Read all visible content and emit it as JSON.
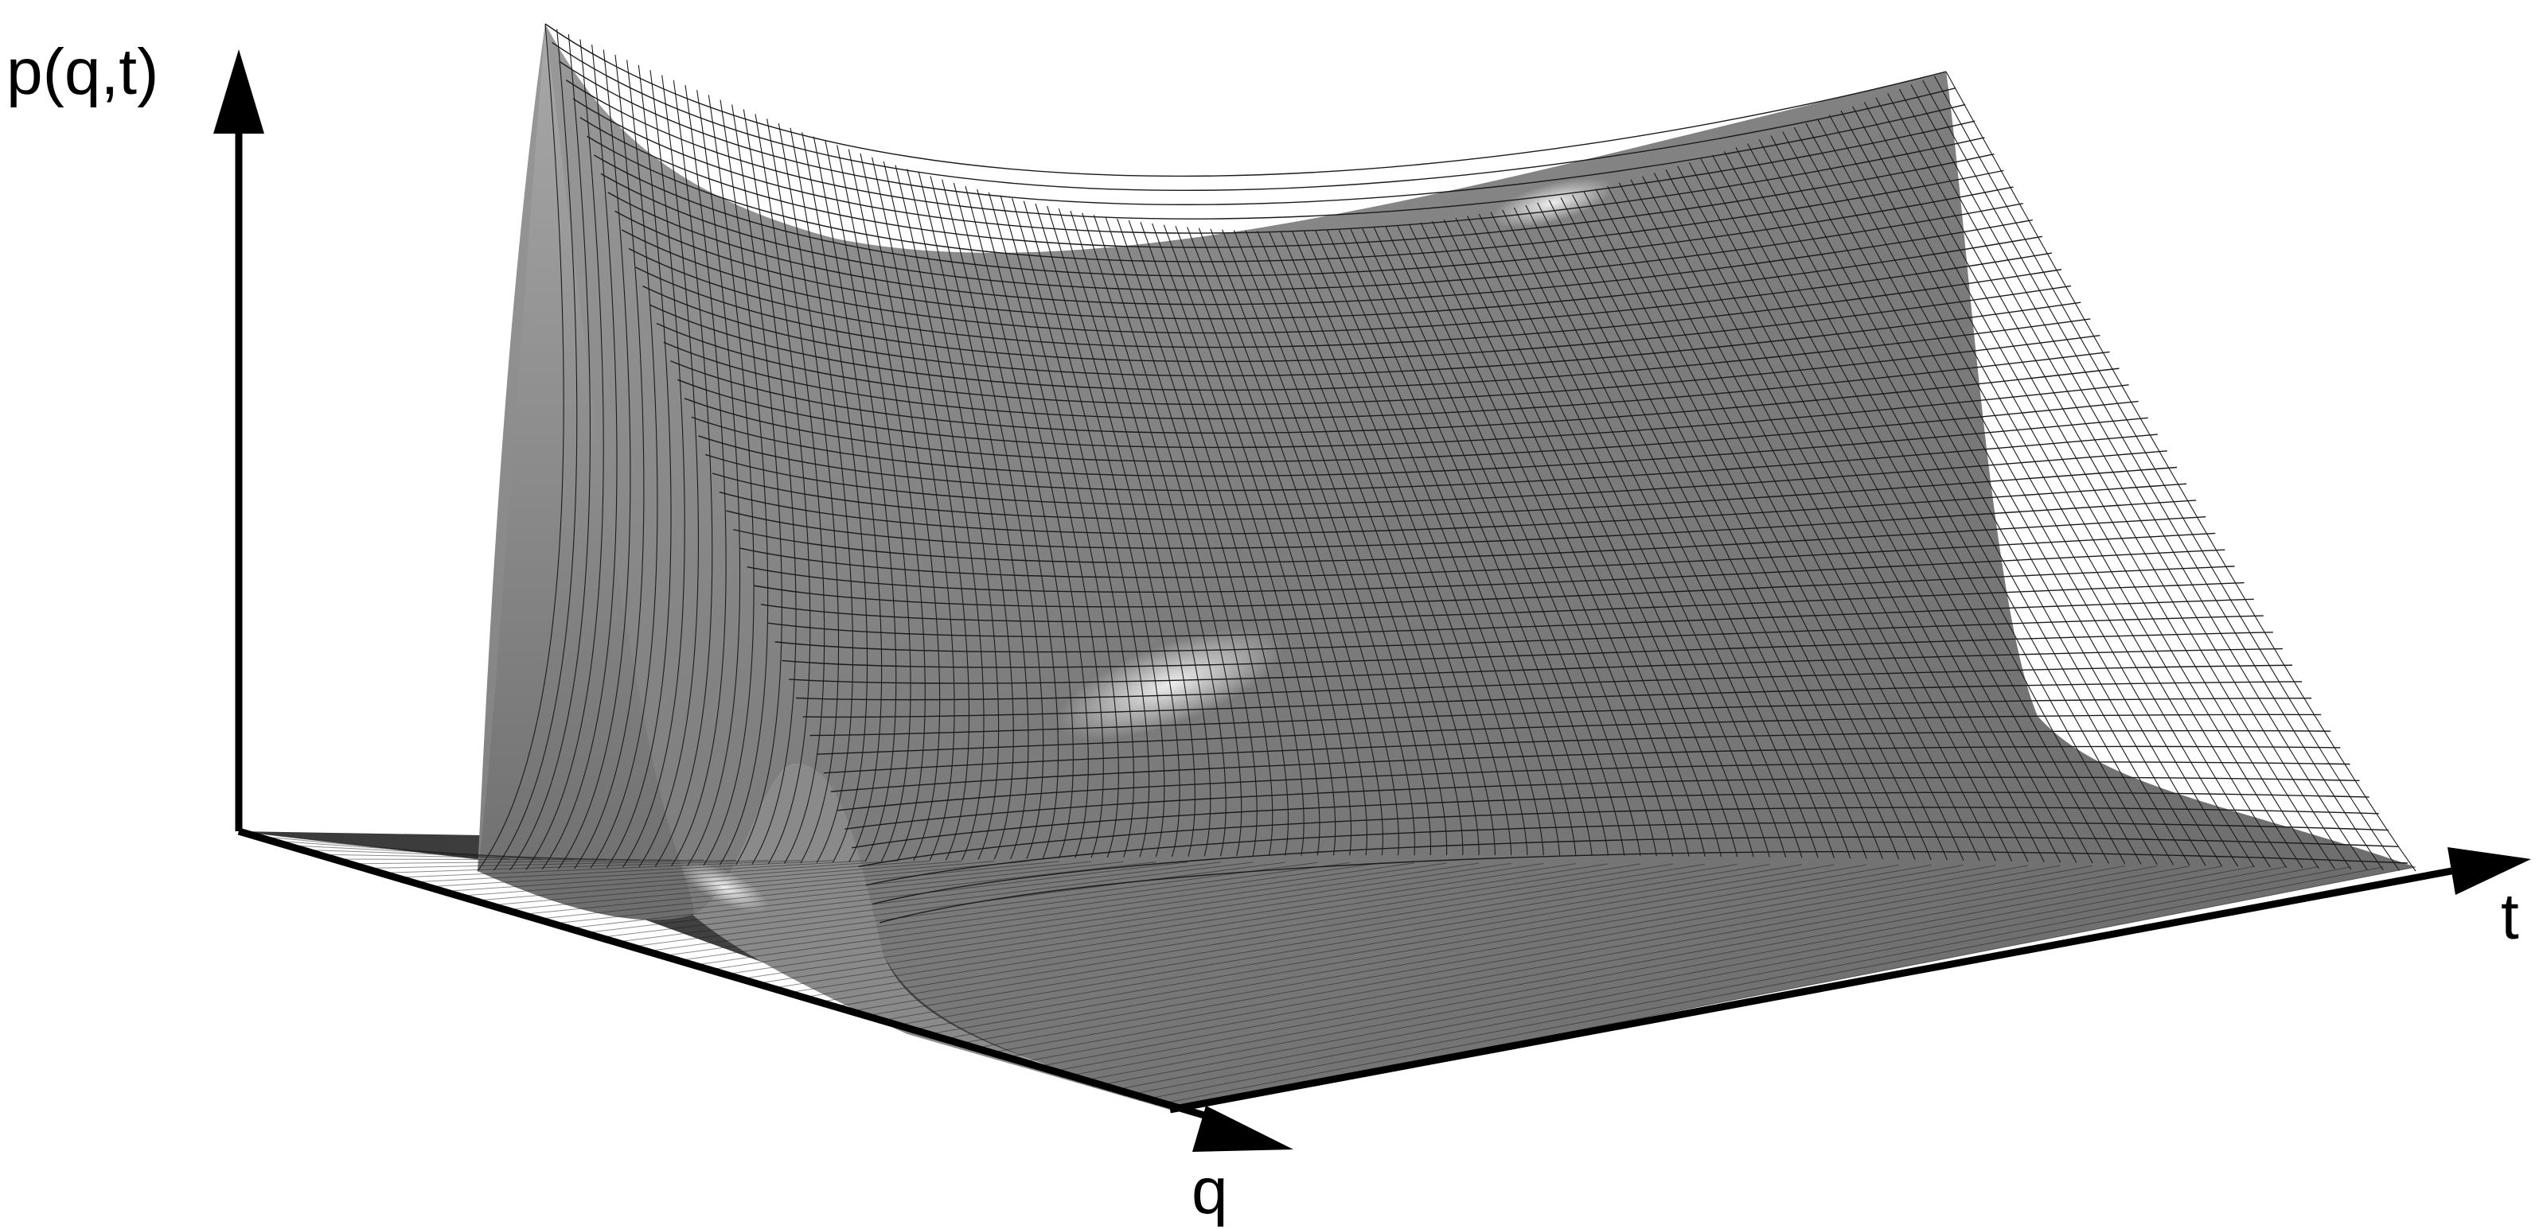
{
  "figure": {
    "axes": {
      "vertical_label": "p(q,t)",
      "q_label": "q",
      "t_label": "t"
    },
    "surface": {
      "description_type": "3d-mesh-surface",
      "shading": "gray-lit",
      "base_color": "#8c8c8c",
      "highlight_color": "#f2f2f2",
      "mesh_color": "#1a1a1a",
      "floor_color": "#3a3a3a"
    }
  }
}
